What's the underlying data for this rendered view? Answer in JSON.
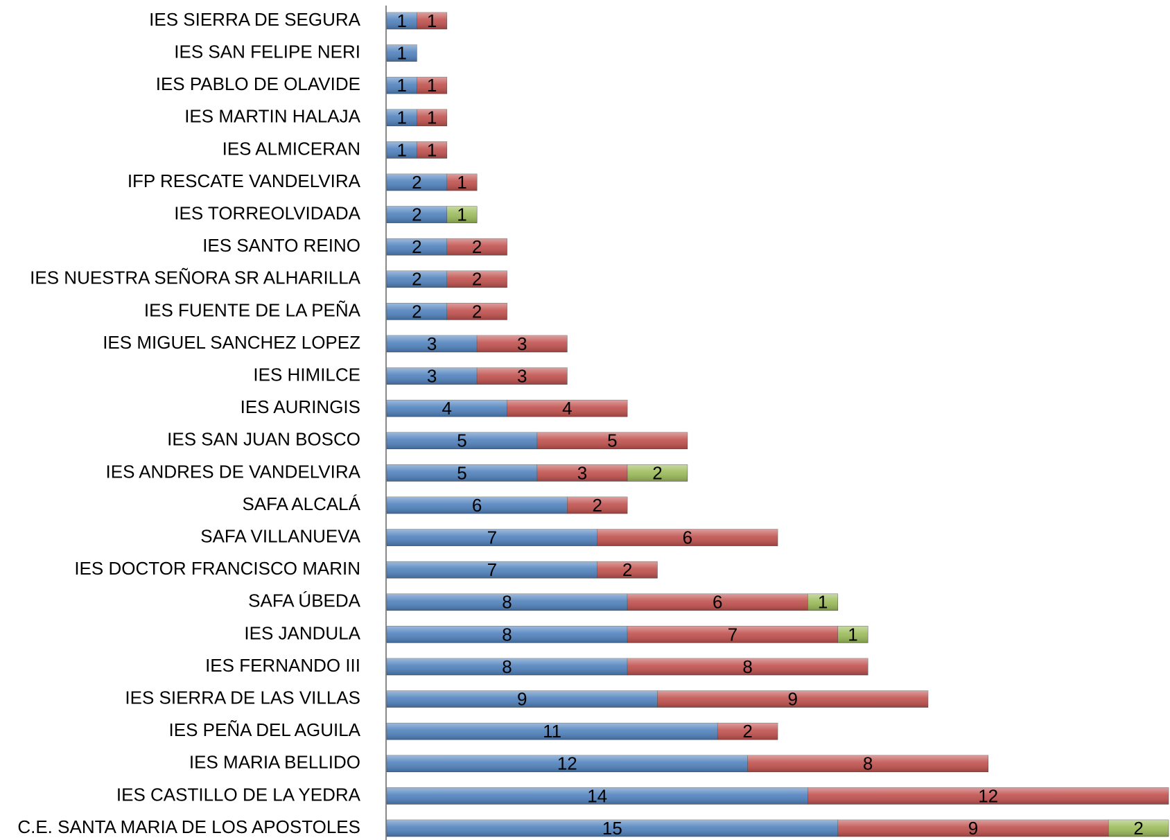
{
  "chart_data": {
    "type": "stacked-bar-horizontal",
    "categories": [
      "IES SIERRA DE SEGURA",
      "IES SAN FELIPE NERI",
      "IES PABLO DE OLAVIDE",
      "IES MARTIN HALAJA",
      "IES ALMICERAN",
      "IFP RESCATE VANDELVIRA",
      "IES TORREOLVIDADA",
      "IES SANTO REINO",
      "IES NUESTRA SEÑORA SR ALHARILLA",
      "IES FUENTE DE LA PEÑA",
      "IES MIGUEL SANCHEZ LOPEZ",
      "IES HIMILCE",
      "IES AURINGIS",
      "IES SAN JUAN BOSCO",
      "IES ANDRES DE VANDELVIRA",
      "SAFA ALCALÁ",
      "SAFA VILLANUEVA",
      "IES DOCTOR FRANCISCO MARIN",
      "SAFA ÚBEDA",
      "IES JANDULA",
      "IES FERNANDO III",
      "IES SIERRA DE LAS VILLAS",
      "IES PEÑA DEL AGUILA",
      "IES MARIA BELLIDO",
      "IES CASTILLO DE LA YEDRA",
      "C.E. SANTA MARIA DE LOS APOSTOLES"
    ],
    "series": [
      {
        "color": "#4f81bd",
        "values": [
          1,
          1,
          1,
          1,
          1,
          2,
          2,
          2,
          2,
          2,
          3,
          3,
          4,
          5,
          5,
          6,
          7,
          7,
          8,
          8,
          8,
          9,
          11,
          12,
          14,
          15
        ]
      },
      {
        "color": "#c0504d",
        "values": [
          1,
          null,
          1,
          1,
          1,
          1,
          null,
          2,
          2,
          2,
          3,
          3,
          4,
          5,
          3,
          2,
          6,
          2,
          6,
          7,
          8,
          9,
          2,
          8,
          12,
          9
        ]
      },
      {
        "color": "#9bbb59",
        "values": [
          null,
          null,
          null,
          null,
          null,
          null,
          1,
          null,
          null,
          null,
          null,
          null,
          null,
          null,
          2,
          null,
          null,
          null,
          1,
          1,
          null,
          null,
          null,
          null,
          null,
          2
        ]
      }
    ],
    "xlim": [
      0,
      26
    ]
  }
}
